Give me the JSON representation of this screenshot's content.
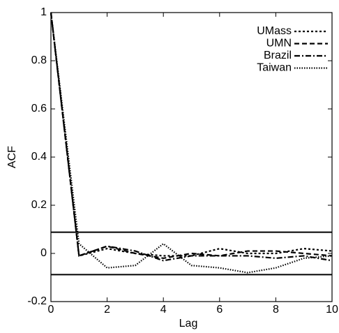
{
  "chart_data": {
    "type": "line",
    "x_label": "Lag",
    "y_label": "ACF",
    "x": [
      0,
      1,
      2,
      3,
      4,
      5,
      6,
      7,
      8,
      9,
      10
    ],
    "series": [
      {
        "name": "UMass",
        "color": "#000000",
        "dash": "3,3",
        "values": [
          1,
          -0.01,
          0.02,
          0.0,
          -0.01,
          -0.01,
          0.02,
          0.0,
          0.0,
          0.02,
          0.01
        ]
      },
      {
        "name": "UMN",
        "color": "#000000",
        "dash": "7,4",
        "values": [
          1,
          -0.01,
          0.03,
          0.0,
          -0.02,
          0.0,
          -0.01,
          0.01,
          0.01,
          0.0,
          -0.01
        ]
      },
      {
        "name": "Brazil",
        "color": "#000000",
        "dash": "8,3,2,3",
        "values": [
          1,
          -0.01,
          0.03,
          0.01,
          -0.03,
          -0.01,
          -0.01,
          -0.01,
          -0.02,
          -0.01,
          -0.03
        ]
      },
      {
        "name": "Taiwan",
        "color": "#000000",
        "dash": "1.5,2",
        "values": [
          1,
          0.04,
          -0.06,
          -0.05,
          0.04,
          -0.05,
          -0.06,
          -0.08,
          -0.06,
          -0.02,
          -0.01
        ]
      }
    ],
    "hlines": [
      0.088,
      -0.088
    ],
    "xlim": [
      0,
      10
    ],
    "xticks": [
      0,
      2,
      4,
      6,
      8,
      10
    ],
    "ylim": [
      -0.2,
      1
    ],
    "yticks": [
      -0.2,
      0,
      0.2,
      0.4,
      0.6,
      0.8,
      1
    ],
    "legend": "top-right"
  }
}
